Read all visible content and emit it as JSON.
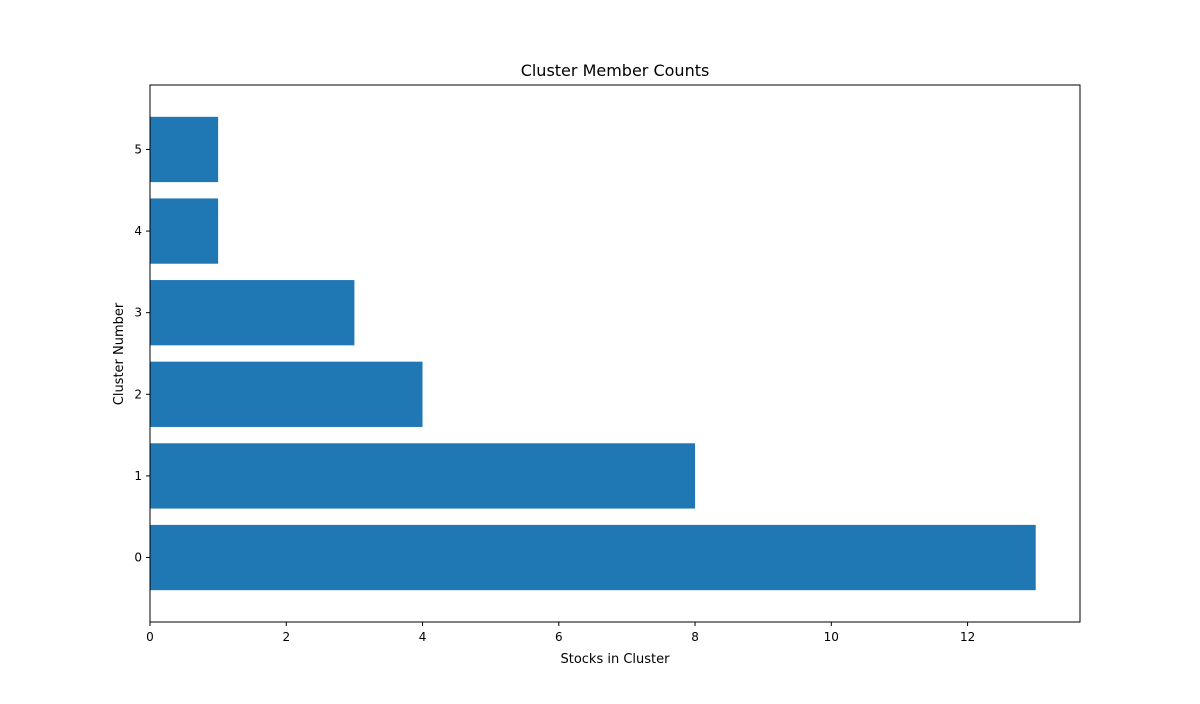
{
  "chart_data": {
    "type": "bar",
    "orientation": "horizontal",
    "title": "Cluster Member Counts",
    "xlabel": "Stocks in Cluster",
    "ylabel": "Cluster Number",
    "categories": [
      "0",
      "1",
      "2",
      "3",
      "4",
      "5"
    ],
    "values": [
      13,
      8,
      4,
      3,
      1,
      1
    ],
    "xlim": [
      0,
      13.65
    ],
    "xticks": [
      "0",
      "2",
      "4",
      "6",
      "8",
      "10",
      "12"
    ],
    "grid": false,
    "legend": "none",
    "bar_color": "#1f77b4"
  }
}
